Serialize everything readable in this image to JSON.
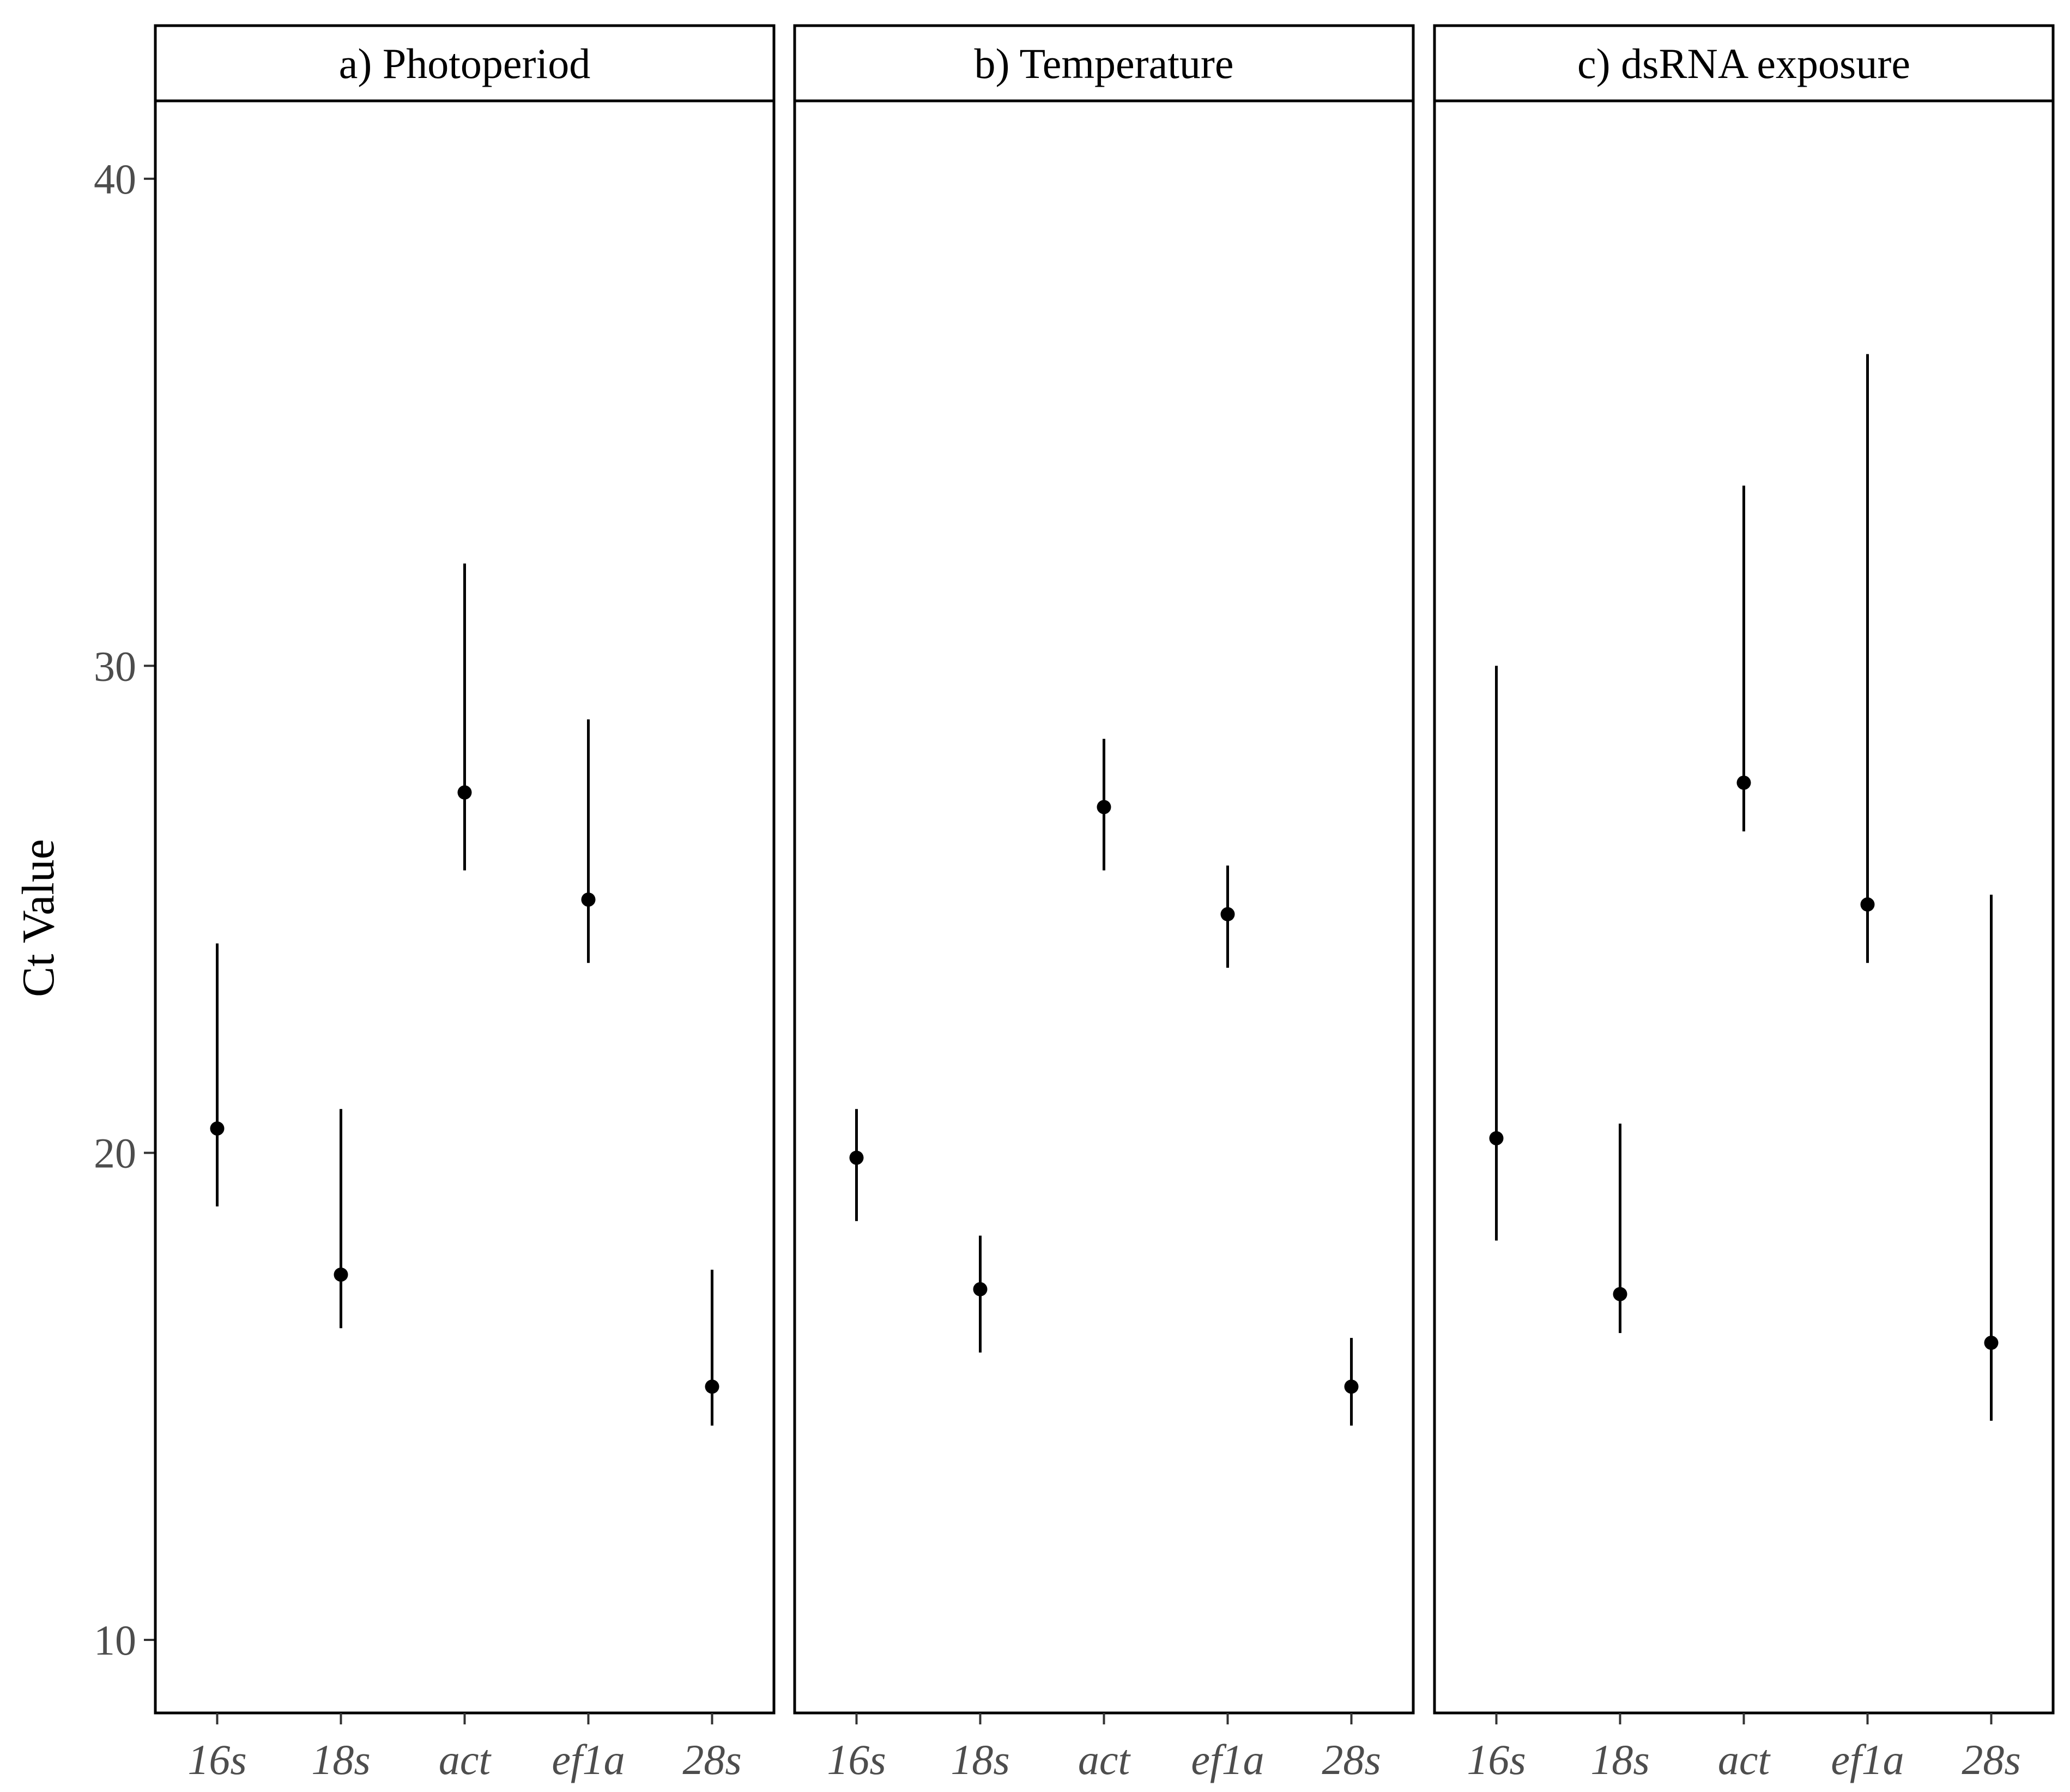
{
  "chart_data": {
    "type": "scatter",
    "ylabel": "Ct Value",
    "xlabel": "",
    "ylim": [
      8.5,
      41.6
    ],
    "yticks": [
      10,
      20,
      30,
      40
    ],
    "categories": [
      "16s",
      "18s",
      "act",
      "ef1a",
      "28s"
    ],
    "panels": [
      {
        "title": "a) Photoperiod",
        "series": [
          {
            "values": [
              20.5,
              17.5,
              27.4,
              25.2,
              15.2
            ],
            "lower": [
              18.9,
              16.4,
              25.8,
              23.9,
              14.4
            ],
            "upper": [
              24.3,
              20.9,
              32.1,
              28.9,
              17.6
            ]
          }
        ]
      },
      {
        "title": "b) Temperature",
        "series": [
          {
            "values": [
              19.9,
              17.2,
              27.1,
              24.9,
              15.2
            ],
            "lower": [
              18.6,
              15.9,
              25.8,
              23.8,
              14.4
            ],
            "upper": [
              20.9,
              18.3,
              28.5,
              25.9,
              16.2
            ]
          }
        ]
      },
      {
        "title": "c) dsRNA exposure",
        "series": [
          {
            "values": [
              20.3,
              17.1,
              27.6,
              25.1,
              16.1
            ],
            "lower": [
              18.2,
              16.3,
              26.6,
              23.9,
              14.5
            ],
            "upper": [
              30.0,
              20.6,
              33.7,
              36.4,
              25.3
            ]
          }
        ]
      }
    ],
    "grid": false,
    "legend": "none",
    "colors": {
      "point": "#000000",
      "errorbar": "#000000",
      "panel_border": "#000000",
      "tick_text": "#4d4d4d"
    }
  }
}
